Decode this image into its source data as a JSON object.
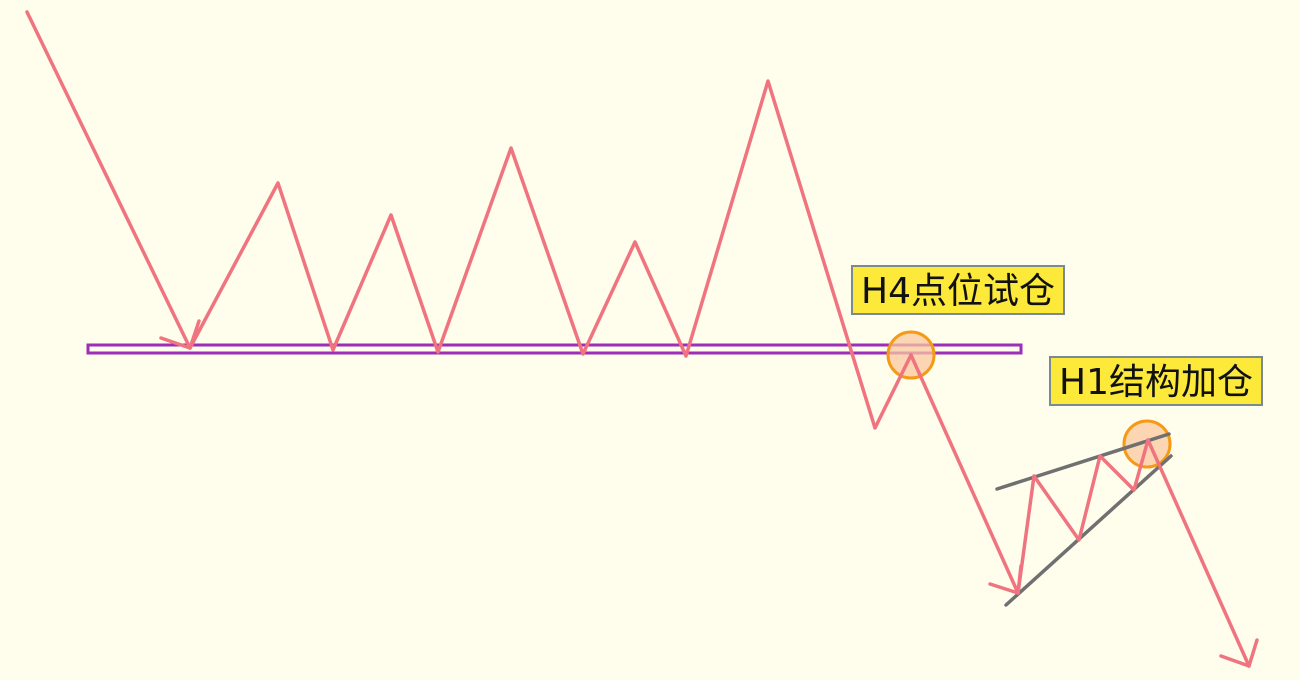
{
  "labels": {
    "h4": "H4点位试仓",
    "h1": "H1结构加仓"
  },
  "colors": {
    "background": "#fffdec",
    "price_path": "#f07480",
    "support_zone": "#9b2fb8",
    "trend_lines": "#707070",
    "entry_marker_stroke": "#f59a16",
    "entry_marker_fill": "#fbc8a0",
    "label_fill": "#fce93a",
    "label_border": "#7a8a90"
  }
}
